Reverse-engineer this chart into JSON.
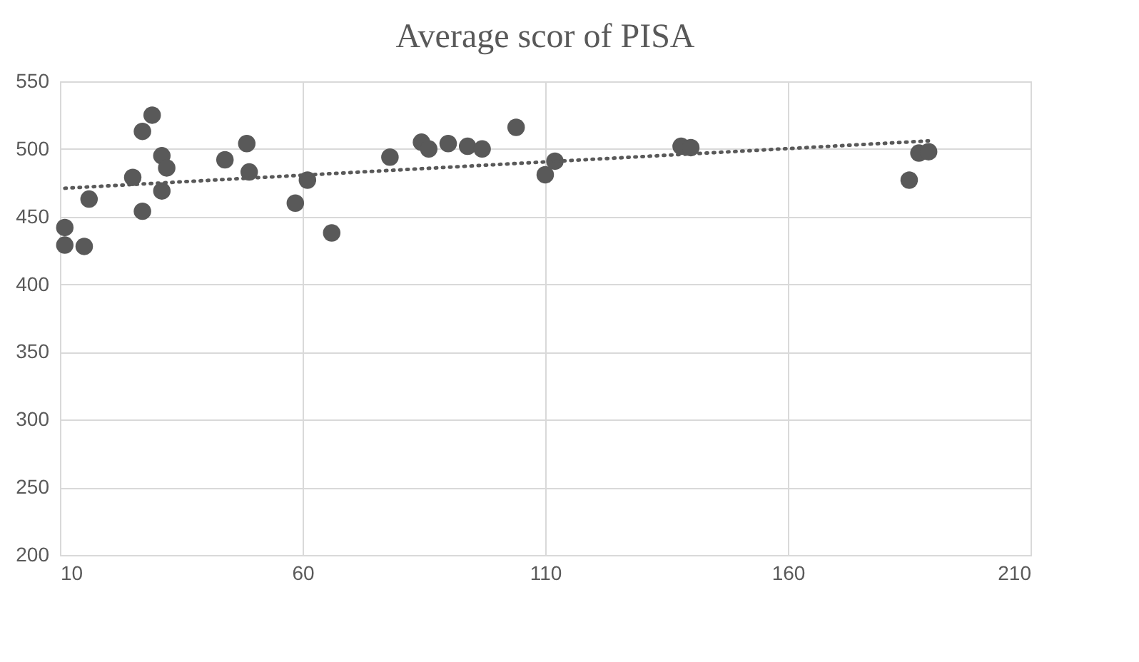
{
  "chart_data": {
    "type": "scatter",
    "title": "Average scor of PISA",
    "x": [
      11,
      11,
      15,
      16,
      25,
      27,
      29,
      27,
      31,
      32,
      31,
      44,
      48.5,
      49,
      58.5,
      61,
      66,
      78,
      84.5,
      86,
      90,
      94,
      97,
      104,
      110,
      112,
      138,
      140,
      185,
      187,
      189
    ],
    "series": [
      {
        "color": "#595959",
        "marker": "circle",
        "values": [
          442,
          429,
          428,
          463,
          479,
          513,
          525,
          454,
          495,
          486,
          469,
          492,
          504,
          483,
          460,
          477,
          438,
          494,
          505,
          500,
          504,
          502,
          500,
          516,
          481,
          491,
          502,
          501,
          477,
          497,
          498
        ]
      },
      {
        "type": "line",
        "color": "#595959",
        "line_style": "dotted",
        "x": [
          11,
          189
        ],
        "values": [
          471,
          506
        ]
      }
    ],
    "xlim": [
      10,
      210
    ],
    "xticks": [
      10,
      60,
      110,
      160,
      210
    ],
    "ylim": [
      200,
      550
    ],
    "yticks": [
      200,
      250,
      300,
      350,
      400,
      450,
      500,
      550
    ],
    "grid": true
  }
}
